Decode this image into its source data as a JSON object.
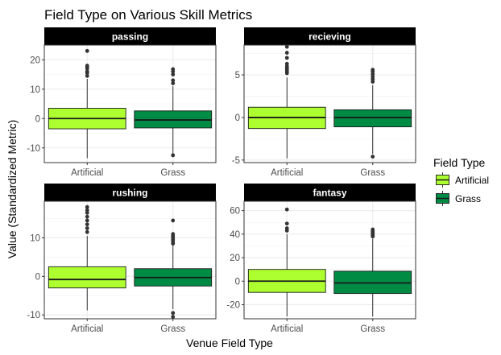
{
  "chart_data": {
    "type": "box",
    "title": "Field Type on Various Skill Metrics",
    "xlabel": "Venue Field Type",
    "ylabel": "Value (Standardized Metric)",
    "categories": [
      "Artificial",
      "Grass"
    ],
    "legend": {
      "title": "Field Type",
      "position": "right",
      "entries": [
        {
          "label": "Artificial",
          "color": "#adff2f"
        },
        {
          "label": "Grass",
          "color": "#008b45"
        }
      ]
    },
    "grid": true,
    "panels": [
      {
        "label": "passing",
        "ylim": [
          -15,
          25
        ],
        "yticks": [
          -10,
          0,
          10,
          20
        ],
        "boxes": [
          {
            "category": "Artificial",
            "min": -13.5,
            "q1": -3.5,
            "median": 0.0,
            "q3": 3.5,
            "max": 13.5,
            "outliers": [
              14.5,
              15.5,
              16.0,
              17.0,
              17.5,
              18.0,
              23.0
            ]
          },
          {
            "category": "Grass",
            "min": -12.0,
            "q1": -3.2,
            "median": -0.5,
            "q3": 2.6,
            "max": 11.0,
            "outliers": [
              12.0,
              13.0,
              15.0,
              16.0,
              16.8,
              -12.5
            ]
          }
        ]
      },
      {
        "label": "recieving",
        "ylim": [
          -5.3,
          8.5
        ],
        "yticks": [
          -5,
          0,
          5
        ],
        "boxes": [
          {
            "category": "Artificial",
            "min": -4.8,
            "q1": -1.3,
            "median": 0.0,
            "q3": 1.2,
            "max": 4.7,
            "outliers": [
              5.2,
              5.4,
              5.6,
              5.8,
              6.0,
              6.3,
              7.0,
              7.6,
              8.3
            ]
          },
          {
            "category": "Grass",
            "min": -4.3,
            "q1": -1.1,
            "median": 0.0,
            "q3": 0.9,
            "max": 3.8,
            "outliers": [
              4.2,
              4.5,
              4.8,
              5.1,
              5.4,
              5.6,
              -4.6
            ]
          }
        ]
      },
      {
        "label": "rushing",
        "ylim": [
          -11,
          19.5
        ],
        "yticks": [
          -10,
          0,
          10
        ],
        "boxes": [
          {
            "category": "Artificial",
            "min": -8.8,
            "q1": -3.0,
            "median": -0.8,
            "q3": 2.5,
            "max": 10.5,
            "outliers": [
              11.5,
              12.5,
              13.5,
              14.5,
              15.5,
              16.5,
              17.2,
              18.0
            ]
          },
          {
            "category": "Grass",
            "min": -8.5,
            "q1": -2.5,
            "median": -0.3,
            "q3": 2.0,
            "max": 8.0,
            "outliers": [
              8.5,
              9.0,
              9.5,
              10.0,
              10.5,
              11.0,
              14.5,
              -9.5,
              -10.5
            ]
          }
        ]
      },
      {
        "label": "fantasy",
        "ylim": [
          -32,
          68
        ],
        "yticks": [
          -20,
          0,
          20,
          40,
          60
        ],
        "boxes": [
          {
            "category": "Artificial",
            "min": -30.0,
            "q1": -9.5,
            "median": 0.0,
            "q3": 10.0,
            "max": 40.0,
            "outliers": [
              43.0,
              45.0,
              49.0,
              61.0
            ]
          },
          {
            "category": "Grass",
            "min": -30.0,
            "q1": -10.5,
            "median": -1.5,
            "q3": 8.5,
            "max": 36.0,
            "outliers": [
              38.0,
              39.0,
              40.0,
              41.0,
              42.0,
              43.0,
              44.0
            ]
          }
        ]
      }
    ]
  }
}
